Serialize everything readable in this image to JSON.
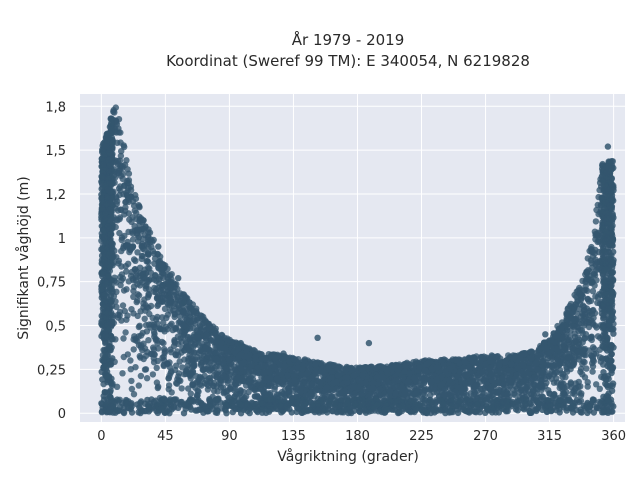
{
  "chart_data": {
    "type": "scatter",
    "title": "År 1979 - 2019",
    "subtitle": "Koordinat (Sweref 99 TM): E 340054, N 6219828",
    "xlabel": "Vågriktning (grader)",
    "ylabel": "Signifikant våghöjd (m)",
    "xlim": [
      -15,
      368
    ],
    "ylim": [
      -0.05,
      1.82
    ],
    "x_ticks": [
      0,
      45,
      90,
      135,
      180,
      225,
      270,
      315,
      360
    ],
    "x_tick_labels": [
      "0",
      "45",
      "90",
      "135",
      "180",
      "225",
      "270",
      "315",
      "360"
    ],
    "y_ticks": [
      0,
      0.25,
      0.5,
      0.75,
      1,
      1.25,
      1.5,
      1.75
    ],
    "y_tick_labels": [
      "0",
      "0,25",
      "0,5",
      "0,75",
      "1",
      "1,2",
      "1,5",
      "1,8"
    ],
    "grid": true,
    "marker_color": "#34566f",
    "envelope": {
      "direction": [
        0,
        10,
        20,
        30,
        45,
        60,
        75,
        90,
        110,
        135,
        160,
        180,
        200,
        225,
        250,
        270,
        290,
        305,
        315,
        325,
        335,
        345,
        352,
        360
      ],
      "max_height": [
        1.5,
        1.78,
        1.35,
        1.12,
        0.85,
        0.66,
        0.52,
        0.42,
        0.35,
        0.32,
        0.28,
        0.26,
        0.27,
        0.3,
        0.31,
        0.33,
        0.33,
        0.36,
        0.43,
        0.55,
        0.72,
        0.98,
        1.42,
        1.45
      ]
    },
    "outliers": [
      {
        "x": 152,
        "y": 0.43
      },
      {
        "x": 188,
        "y": 0.4
      },
      {
        "x": 98,
        "y": 0.4
      },
      {
        "x": 312,
        "y": 0.45
      },
      {
        "x": 356,
        "y": 1.52
      },
      {
        "x": 30,
        "y": 1.05
      },
      {
        "x": 40,
        "y": 0.95
      },
      {
        "x": 54,
        "y": 0.77
      },
      {
        "x": 58,
        "y": 0.63
      },
      {
        "x": 63,
        "y": 0.6
      },
      {
        "x": 128,
        "y": 0.34
      }
    ]
  }
}
